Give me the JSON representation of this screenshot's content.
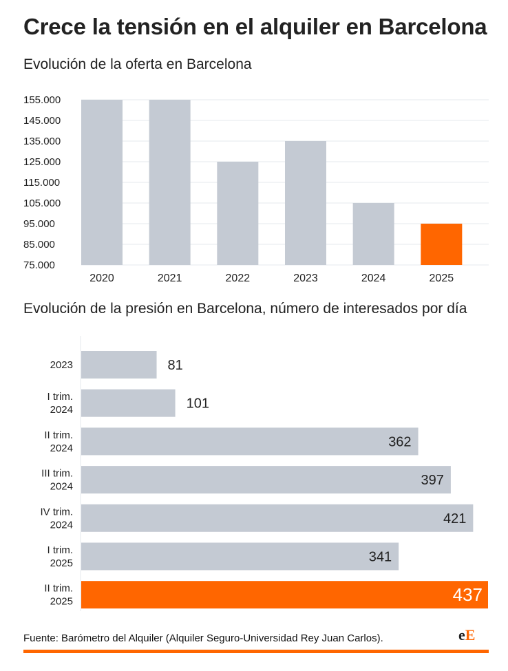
{
  "title": "Crece la tensión en el alquiler en Barcelona",
  "colors": {
    "bar": "#c4cad3",
    "highlight": "#ff6600",
    "grid": "#e6e8ec",
    "text": "#222222"
  },
  "chart_data": [
    {
      "type": "bar",
      "title": "Evolución de la oferta en Barcelona",
      "categories": [
        "2020",
        "2021",
        "2022",
        "2023",
        "2024",
        "2025"
      ],
      "values": [
        155000,
        155000,
        125000,
        135000,
        105000,
        95000
      ],
      "highlight_index": 5,
      "ylim": [
        75000,
        160000
      ],
      "yticks": [
        75000,
        85000,
        95000,
        105000,
        115000,
        125000,
        135000,
        145000,
        155000
      ],
      "ytick_labels": [
        "75.000",
        "85.000",
        "95.000",
        "105.000",
        "115.000",
        "125.000",
        "135.000",
        "145.000",
        "155.000"
      ],
      "grid": true,
      "xlabel": "",
      "ylabel": ""
    },
    {
      "type": "bar",
      "orientation": "horizontal",
      "title": "Evolución de la presión en Barcelona, número de interesados por día",
      "categories": [
        [
          "2023"
        ],
        [
          "I trim.",
          "2024"
        ],
        [
          "II trim.",
          "2024"
        ],
        [
          "III trim.",
          "2024"
        ],
        [
          "IV trim.",
          "2024"
        ],
        [
          "I trim.",
          "2025"
        ],
        [
          "II trim.",
          "2025"
        ]
      ],
      "values": [
        81,
        101,
        362,
        397,
        421,
        341,
        437
      ],
      "highlight_index": 6,
      "xlim": [
        0,
        437
      ],
      "xlabel": "",
      "ylabel": ""
    }
  ],
  "footer": {
    "source": "Fuente:  Barómetro del Alquiler  (Alquiler Seguro-Universidad Rey Juan Carlos).",
    "logo_part1": "e",
    "logo_part2": "E"
  }
}
